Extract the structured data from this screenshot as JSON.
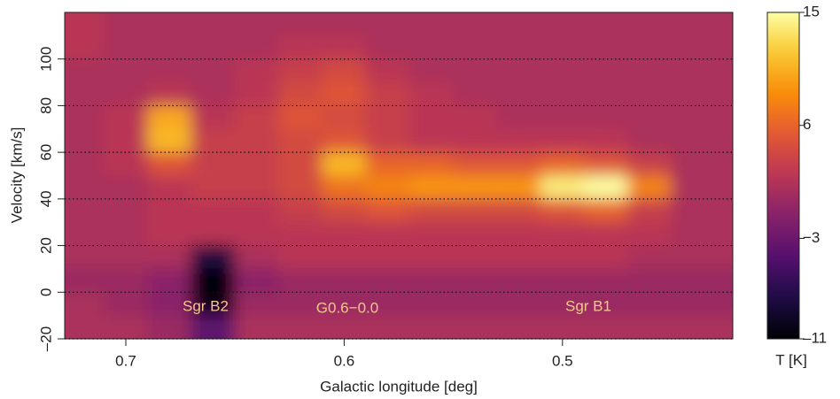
{
  "chart_data": {
    "type": "heatmap",
    "xlabel": "Galactic longitude [deg]",
    "ylabel": "Velocity [km/s]",
    "colorbar_label": "T [K]",
    "colormap": "inferno",
    "xlim": [
      0.728,
      0.422
    ],
    "ylim": [
      -20,
      120
    ],
    "xticks": [
      0.7,
      0.6,
      0.5
    ],
    "yticks": [
      {
        "value": -20,
        "label": "–20"
      },
      0,
      20,
      40,
      60,
      80,
      100
    ],
    "grid": true,
    "clim": [
      -11,
      15
    ],
    "cticks": [
      15,
      6,
      {
        "value": -3,
        "label": "−3"
      },
      {
        "value": -11,
        "label": "–11"
      }
    ],
    "annotations": [
      "Sgr B2",
      "G0.6−0.0",
      "Sgr B1"
    ],
    "x": [
      0.72,
      0.7,
      0.68,
      0.66,
      0.64,
      0.62,
      0.6,
      0.58,
      0.56,
      0.54,
      0.52,
      0.5,
      0.48,
      0.46,
      0.44
    ],
    "y": [
      115,
      105,
      95,
      85,
      75,
      65,
      55,
      45,
      35,
      25,
      15,
      5,
      -5,
      -15
    ],
    "z": [
      [
        2,
        1,
        1,
        1,
        1,
        1,
        1,
        1,
        1,
        1,
        1,
        1,
        1,
        1,
        1
      ],
      [
        2,
        1,
        1,
        1,
        1,
        2,
        2,
        1,
        1,
        1,
        1,
        1,
        1,
        1,
        1
      ],
      [
        1,
        1,
        1,
        1,
        2,
        3,
        4,
        2,
        1,
        1,
        1,
        1,
        1,
        1,
        1
      ],
      [
        1,
        1,
        2,
        1,
        2,
        4,
        5,
        3,
        2,
        1,
        1,
        1,
        1,
        1,
        1
      ],
      [
        1,
        2,
        10,
        2,
        3,
        5,
        4,
        3,
        2,
        2,
        1,
        1,
        1,
        1,
        1
      ],
      [
        1,
        2,
        11,
        3,
        3,
        4,
        5,
        3,
        2,
        2,
        2,
        2,
        2,
        1,
        1
      ],
      [
        1,
        2,
        5,
        3,
        3,
        4,
        11,
        6,
        6,
        5,
        5,
        6,
        5,
        3,
        1
      ],
      [
        1,
        1,
        2,
        3,
        3,
        4,
        7,
        8,
        9,
        9,
        9,
        14,
        15,
        8,
        1
      ],
      [
        1,
        1,
        2,
        2,
        2,
        3,
        4,
        5,
        4,
        4,
        4,
        5,
        6,
        3,
        1
      ],
      [
        1,
        1,
        2,
        2,
        2,
        2,
        2,
        2,
        2,
        2,
        2,
        2,
        2,
        2,
        1
      ],
      [
        1,
        1,
        1,
        -8,
        1,
        2,
        2,
        2,
        2,
        2,
        2,
        2,
        2,
        1,
        1
      ],
      [
        0,
        0,
        -1,
        -11,
        -1,
        0,
        0,
        0,
        0,
        0,
        0,
        0,
        0,
        0,
        0
      ],
      [
        1,
        0,
        -1,
        -10,
        0,
        0,
        0,
        0,
        0,
        0,
        0,
        0,
        0,
        0,
        0
      ],
      [
        1,
        1,
        0,
        -4,
        1,
        1,
        1,
        1,
        1,
        1,
        1,
        1,
        1,
        1,
        1
      ]
    ]
  }
}
